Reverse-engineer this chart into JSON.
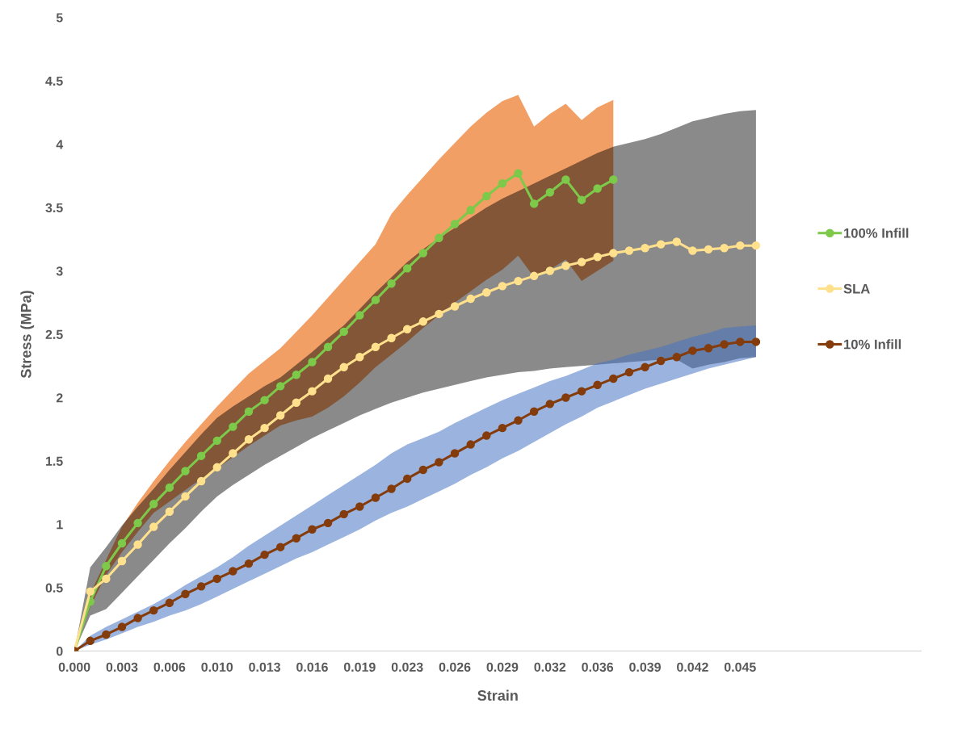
{
  "chart_data": {
    "type": "line",
    "xlabel": "Strain",
    "ylabel": "Stress (MPa)",
    "x": [
      0,
      0.00108,
      0.00216,
      0.00324,
      0.00432,
      0.0054,
      0.00648,
      0.00756,
      0.00864,
      0.00972,
      0.0108,
      0.01188,
      0.01296,
      0.01404,
      0.01512,
      0.0162,
      0.01728,
      0.01836,
      0.01944,
      0.02052,
      0.0216,
      0.02268,
      0.02376,
      0.02484,
      0.02592,
      0.027,
      0.02808,
      0.02916,
      0.03024,
      0.03132,
      0.0324,
      0.03348,
      0.03456,
      0.03564,
      0.03672,
      0.0378,
      0.03888,
      0.03996,
      0.04104,
      0.04212,
      0.0432,
      0.04428,
      0.04536,
      0.04644
    ],
    "xlim": [
      0,
      0.0577
    ],
    "xticks": [
      {
        "value": 0,
        "label": "0.000"
      },
      {
        "value": 0.00324,
        "label": "0.003"
      },
      {
        "value": 0.00648,
        "label": "0.006"
      },
      {
        "value": 0.00972,
        "label": "0.010"
      },
      {
        "value": 0.01296,
        "label": "0.013"
      },
      {
        "value": 0.0162,
        "label": "0.016"
      },
      {
        "value": 0.01944,
        "label": "0.019"
      },
      {
        "value": 0.02268,
        "label": "0.023"
      },
      {
        "value": 0.02592,
        "label": "0.026"
      },
      {
        "value": 0.02916,
        "label": "0.029"
      },
      {
        "value": 0.0324,
        "label": "0.032"
      },
      {
        "value": 0.03564,
        "label": "0.036"
      },
      {
        "value": 0.03888,
        "label": "0.039"
      },
      {
        "value": 0.04212,
        "label": "0.042"
      },
      {
        "value": 0.04536,
        "label": "0.045"
      }
    ],
    "ylim": [
      0,
      5
    ],
    "yticks": [
      0,
      0.5,
      1,
      1.5,
      2,
      2.5,
      3,
      3.5,
      4,
      4.5,
      5
    ],
    "grid": false,
    "legend": "right",
    "marker": "circle",
    "line_style": "solid",
    "series": [
      {
        "name": "100% Infill",
        "color": "#7dc94a",
        "x": [
          0,
          0.00108,
          0.00216,
          0.00324,
          0.00432,
          0.0054,
          0.00648,
          0.00756,
          0.00864,
          0.00972,
          0.0108,
          0.01188,
          0.01296,
          0.01404,
          0.01512,
          0.0162,
          0.01728,
          0.01836,
          0.01944,
          0.02052,
          0.0216,
          0.02268,
          0.02376,
          0.02484,
          0.02592,
          0.027,
          0.02808,
          0.02916,
          0.03024,
          0.03132,
          0.0324,
          0.03348,
          0.03456,
          0.03564,
          0.03672
        ],
        "values": [
          0,
          0.39,
          0.67,
          0.85,
          1.01,
          1.16,
          1.29,
          1.42,
          1.54,
          1.66,
          1.77,
          1.89,
          1.98,
          2.09,
          2.18,
          2.28,
          2.4,
          2.52,
          2.65,
          2.77,
          2.9,
          3.02,
          3.14,
          3.26,
          3.37,
          3.48,
          3.59,
          3.69,
          3.77,
          3.53,
          3.62,
          3.72,
          3.56,
          3.65,
          3.72
        ],
        "upper": [
          0,
          0.45,
          0.72,
          0.98,
          1.17,
          1.34,
          1.5,
          1.65,
          1.79,
          1.93,
          2.06,
          2.19,
          2.29,
          2.39,
          2.52,
          2.65,
          2.79,
          2.93,
          3.07,
          3.21,
          3.45,
          3.6,
          3.74,
          3.88,
          4.01,
          4.14,
          4.25,
          4.34,
          4.39,
          4.14,
          4.24,
          4.32,
          4.19,
          4.29,
          4.35
        ],
        "lower": [
          0,
          0.35,
          0.6,
          0.78,
          0.94,
          1.09,
          1.18,
          1.27,
          1.36,
          1.44,
          1.53,
          1.62,
          1.7,
          1.78,
          1.82,
          1.85,
          1.92,
          2.01,
          2.12,
          2.24,
          2.34,
          2.44,
          2.55,
          2.65,
          2.75,
          2.84,
          2.93,
          3.01,
          3.12,
          2.95,
          3.01,
          3.09,
          2.92,
          3.0,
          3.08
        ]
      },
      {
        "name": "SLA",
        "color": "#ffe08c",
        "values": [
          0,
          0.47,
          0.57,
          0.71,
          0.84,
          0.98,
          1.1,
          1.22,
          1.34,
          1.45,
          1.56,
          1.67,
          1.76,
          1.86,
          1.96,
          2.05,
          2.15,
          2.24,
          2.32,
          2.4,
          2.47,
          2.54,
          2.6,
          2.66,
          2.72,
          2.78,
          2.83,
          2.88,
          2.92,
          2.96,
          3.0,
          3.04,
          3.07,
          3.11,
          3.14,
          3.16,
          3.18,
          3.21,
          3.23,
          3.16,
          3.17,
          3.18,
          3.2,
          3.2
        ],
        "upper": [
          0,
          0.66,
          0.82,
          0.99,
          1.14,
          1.28,
          1.43,
          1.57,
          1.71,
          1.84,
          1.93,
          2.01,
          2.09,
          2.16,
          2.26,
          2.36,
          2.47,
          2.57,
          2.7,
          2.83,
          2.95,
          3.07,
          3.17,
          3.26,
          3.34,
          3.42,
          3.5,
          3.57,
          3.63,
          3.69,
          3.75,
          3.81,
          3.87,
          3.93,
          3.98,
          4.01,
          4.04,
          4.08,
          4.13,
          4.18,
          4.21,
          4.24,
          4.26,
          4.27
        ],
        "lower": [
          0,
          0.28,
          0.33,
          0.46,
          0.59,
          0.72,
          0.85,
          0.97,
          1.1,
          1.22,
          1.31,
          1.39,
          1.47,
          1.54,
          1.61,
          1.68,
          1.74,
          1.8,
          1.86,
          1.91,
          1.96,
          2.0,
          2.04,
          2.07,
          2.1,
          2.13,
          2.16,
          2.18,
          2.2,
          2.21,
          2.23,
          2.24,
          2.25,
          2.26,
          2.27,
          2.28,
          2.29,
          2.3,
          2.3,
          2.23,
          2.26,
          2.28,
          2.31,
          2.32
        ]
      },
      {
        "name": "10% Infill",
        "color": "#843c0c",
        "values": [
          0,
          0.08,
          0.13,
          0.19,
          0.26,
          0.32,
          0.38,
          0.45,
          0.51,
          0.57,
          0.63,
          0.69,
          0.76,
          0.82,
          0.89,
          0.96,
          1.01,
          1.08,
          1.14,
          1.21,
          1.28,
          1.36,
          1.43,
          1.49,
          1.56,
          1.63,
          1.7,
          1.76,
          1.82,
          1.89,
          1.95,
          2.0,
          2.05,
          2.1,
          2.15,
          2.2,
          2.24,
          2.29,
          2.32,
          2.37,
          2.39,
          2.42,
          2.44,
          2.44
        ],
        "upper": [
          0,
          0.12,
          0.19,
          0.25,
          0.31,
          0.37,
          0.44,
          0.52,
          0.59,
          0.66,
          0.74,
          0.83,
          0.91,
          0.99,
          1.07,
          1.15,
          1.23,
          1.31,
          1.39,
          1.47,
          1.56,
          1.63,
          1.68,
          1.73,
          1.8,
          1.86,
          1.92,
          1.98,
          2.03,
          2.08,
          2.13,
          2.17,
          2.22,
          2.27,
          2.3,
          2.34,
          2.37,
          2.4,
          2.44,
          2.48,
          2.51,
          2.55,
          2.56,
          2.57
        ],
        "lower": [
          0,
          0.05,
          0.09,
          0.14,
          0.19,
          0.23,
          0.28,
          0.32,
          0.37,
          0.43,
          0.49,
          0.55,
          0.61,
          0.67,
          0.73,
          0.78,
          0.84,
          0.9,
          0.96,
          1.03,
          1.09,
          1.14,
          1.2,
          1.26,
          1.32,
          1.39,
          1.45,
          1.52,
          1.58,
          1.65,
          1.72,
          1.79,
          1.85,
          1.92,
          1.97,
          2.02,
          2.07,
          2.11,
          2.15,
          2.19,
          2.23,
          2.26,
          2.29,
          2.32
        ]
      }
    ]
  }
}
